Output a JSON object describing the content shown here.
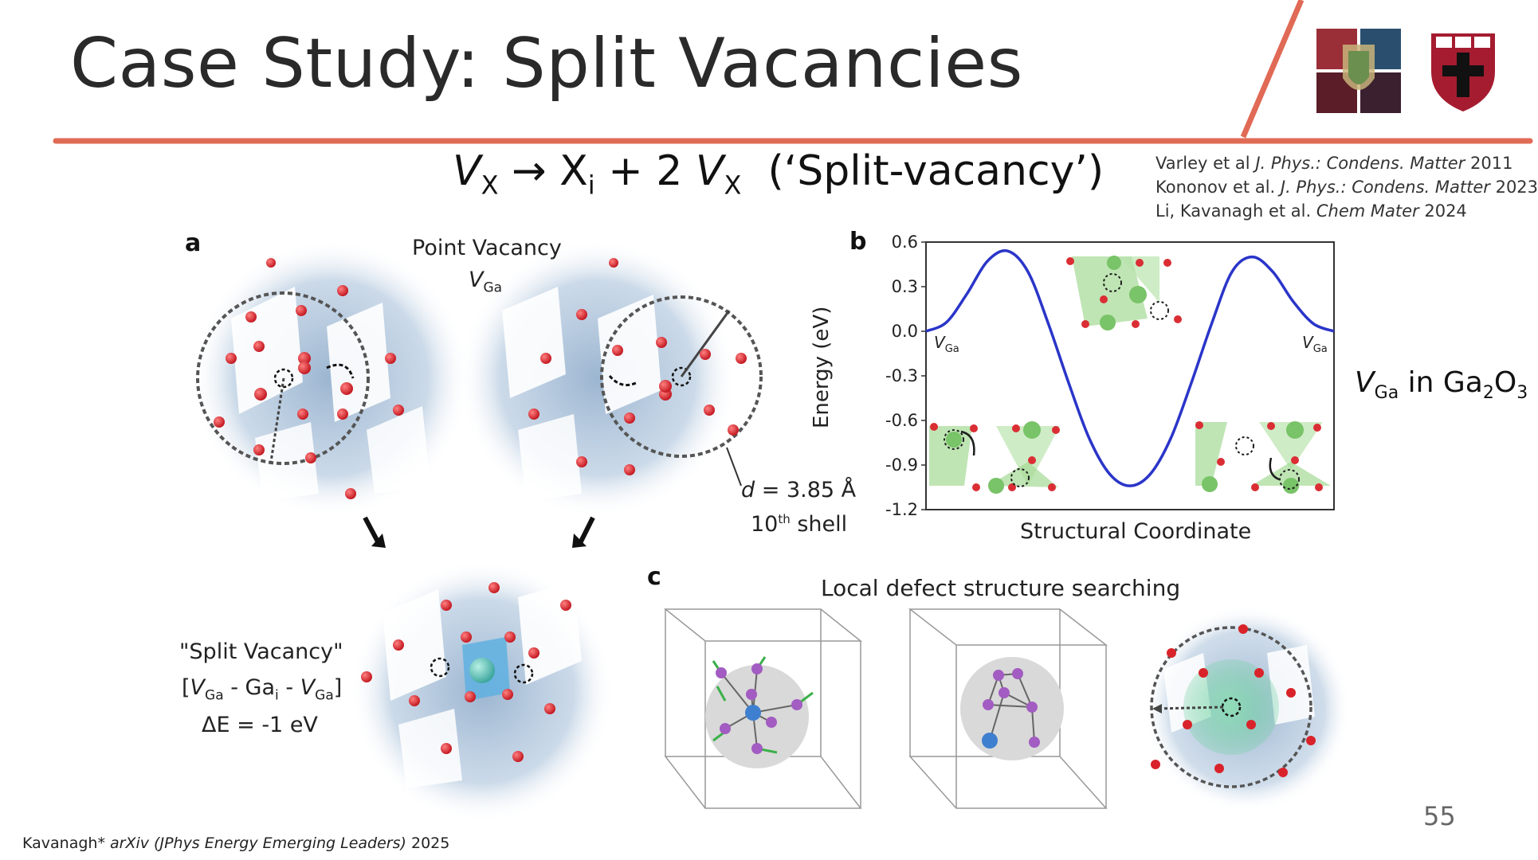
{
  "slide": {
    "title": "Case Study: Split Vacancies",
    "equation": {
      "lhs_symbol": "V",
      "lhs_sub": "X",
      "arrow": "→",
      "interstitial_symbol": "X",
      "interstitial_sub": "i",
      "plus_two": "+ 2",
      "rhs_symbol": "V",
      "rhs_sub": "X",
      "annotation": "(‘Split-vacancy’)"
    },
    "references": [
      {
        "authors": "Varley et al",
        "journal": "J. Phys.: Condens. Matter",
        "year": "2011"
      },
      {
        "authors": "Kononov et al.",
        "journal": "J. Phys.: Condens. Matter",
        "year": "2023"
      },
      {
        "authors": "Li, Kavanagh et al.",
        "journal": "Chem Mater",
        "year": "2024"
      }
    ],
    "material_label": {
      "symbol": "V",
      "sub": "Ga",
      "text_in": "in Ga",
      "sub2": "2",
      "o": "O",
      "sub3": "3"
    },
    "page_number": "55",
    "footer": {
      "author": "Kavanagh*",
      "venue": "arXiv",
      "paren": "(JPhys Energy Emerging Leaders)",
      "year": "2025"
    }
  },
  "panel_a": {
    "letter": "a",
    "point_vacancy_label": "Point Vacancy",
    "vga_symbol": "V",
    "vga_sub": "Ga",
    "distance_label": {
      "d": "d",
      "value": "= 3.85 Å"
    },
    "shell_label": {
      "num": "10",
      "sup": "th",
      "text": "shell"
    },
    "split_vacancy_label": "\"Split Vacancy\"",
    "split_formula": {
      "open": "[",
      "v1": "V",
      "v1sub": "Ga",
      "dash1": "- Ga",
      "isub": "i",
      "dash2": "-",
      "v2": "V",
      "v2sub": "Ga",
      "close": "]"
    },
    "delta_e": "ΔE = -1 eV"
  },
  "panel_b": {
    "letter": "b",
    "ylabel": "Energy (eV)",
    "xlabel": "Structural Coordinate",
    "left_state": {
      "symbol": "V",
      "sub": "Ga"
    },
    "right_state": {
      "symbol": "V",
      "sub": "Ga"
    },
    "line_color": "#2a35c9"
  },
  "panel_c": {
    "letter": "c",
    "title": "Local defect structure searching"
  },
  "chart_data": {
    "type": "line",
    "xlabel": "Structural Coordinate",
    "ylabel": "Energy (eV)",
    "ylim": [
      -1.2,
      0.6
    ],
    "yticks": [
      "0.6",
      "0.3",
      "0.0",
      "-0.3",
      "-0.6",
      "-0.9",
      "-1.2"
    ],
    "xlim": [
      0,
      1
    ],
    "series": [
      {
        "x": [
          0.0,
          0.05,
          0.1,
          0.15,
          0.2,
          0.25,
          0.3,
          0.35,
          0.4,
          0.45,
          0.5,
          0.55,
          0.6,
          0.65,
          0.7,
          0.75,
          0.8,
          0.85,
          0.9,
          0.95,
          1.0
        ],
        "values": [
          0.0,
          0.06,
          0.25,
          0.47,
          0.54,
          0.4,
          0.05,
          -0.35,
          -0.72,
          -0.96,
          -1.04,
          -0.96,
          -0.72,
          -0.35,
          0.05,
          0.4,
          0.5,
          0.4,
          0.2,
          0.05,
          0.0
        ]
      }
    ],
    "grid": false
  },
  "colors": {
    "accent": "#e06a55",
    "atom_red": "#d9232a",
    "ga_blue": "#6d8fb5",
    "polyhedra_green": "#8fd27f",
    "purple": "#a25cc2"
  }
}
